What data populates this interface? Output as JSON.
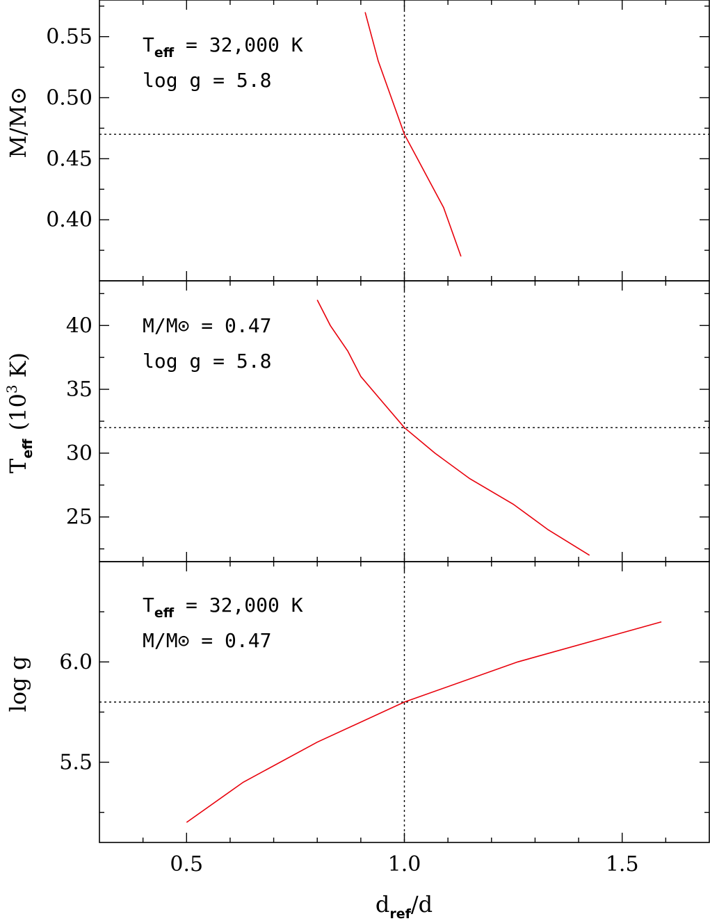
{
  "chart_data": [
    {
      "type": "line",
      "ylabel": "M/M⊙",
      "ylim": [
        0.35,
        0.58
      ],
      "yticks": [
        0.4,
        0.45,
        0.5,
        0.55
      ],
      "ytick_labels": [
        "0.40",
        "0.45",
        "0.50",
        "0.55"
      ],
      "annotations": [
        {
          "name": "T",
          "sub": "eff",
          "rest": " = 32,000 K"
        },
        {
          "name": "log g",
          "sub": "",
          "rest": " = 5.8"
        }
      ],
      "ref_x": 1.0,
      "ref_y": 0.47,
      "series": [
        {
          "color": "#e8000b",
          "x": [
            0.91,
            0.94,
            0.98,
            1.0,
            1.03,
            1.06,
            1.09,
            1.13
          ],
          "y": [
            0.57,
            0.53,
            0.49,
            0.47,
            0.45,
            0.43,
            0.41,
            0.37
          ]
        }
      ]
    },
    {
      "type": "line",
      "ylabel_main": "T",
      "ylabel_sub": "eff",
      "ylabel_rest": "(10",
      "ylabel_sup": "3",
      "ylabel_unit": "K)",
      "ylim": [
        21.5,
        43.5
      ],
      "yticks": [
        25,
        30,
        35,
        40
      ],
      "ytick_labels": [
        "25",
        "30",
        "35",
        "40"
      ],
      "annotations": [
        {
          "name": "M/M⊙",
          "sub": "",
          "rest": " = 0.47"
        },
        {
          "name": "log g",
          "sub": "",
          "rest": " = 5.8"
        }
      ],
      "ref_x": 1.0,
      "ref_y": 32,
      "series": [
        {
          "color": "#e8000b",
          "x": [
            0.8,
            0.83,
            0.87,
            0.9,
            0.95,
            1.0,
            1.07,
            1.15,
            1.25,
            1.33,
            1.425
          ],
          "y": [
            42,
            40,
            38,
            36,
            34,
            32,
            30,
            28,
            26,
            24,
            22
          ]
        }
      ]
    },
    {
      "type": "line",
      "xlabel_main": "d",
      "xlabel_sub": "ref",
      "xlabel_rest": "/d",
      "ylabel": "log g",
      "xlim": [
        0.3,
        1.7
      ],
      "xticks": [
        0.5,
        1.0,
        1.5
      ],
      "xtick_labels": [
        "0.5",
        "1.0",
        "1.5"
      ],
      "ylim": [
        5.1,
        6.5
      ],
      "yticks": [
        5.5,
        6.0
      ],
      "ytick_labels": [
        "5.5",
        "6.0"
      ],
      "annotations": [
        {
          "name": "T",
          "sub": "eff",
          "rest": " = 32,000 K"
        },
        {
          "name": "M/M⊙",
          "sub": "",
          "rest": " = 0.47"
        }
      ],
      "ref_x": 1.0,
      "ref_y": 5.8,
      "series": [
        {
          "color": "#e8000b",
          "x": [
            0.5,
            0.63,
            0.8,
            1.0,
            1.26,
            1.59
          ],
          "y": [
            5.2,
            5.4,
            5.6,
            5.8,
            6.0,
            6.2
          ]
        }
      ]
    }
  ]
}
